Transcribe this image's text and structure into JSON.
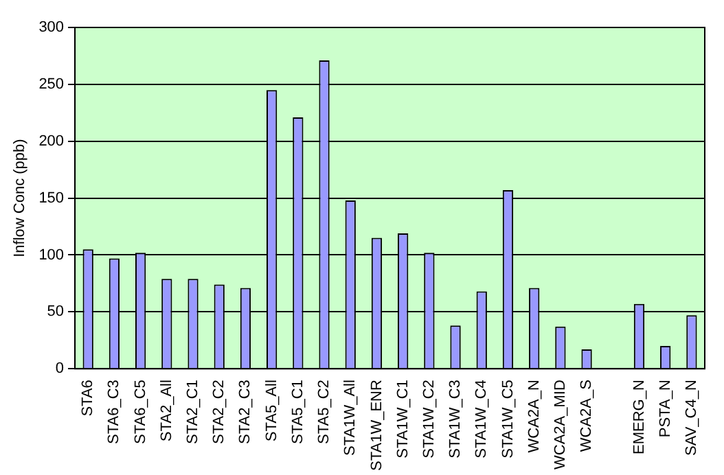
{
  "chart_data": {
    "type": "bar",
    "ylabel": "Inflow Conc (ppb)",
    "categories": [
      "STA6",
      "STA6_C3",
      "STA6_C5",
      "STA2_All",
      "STA2_C1",
      "STA2_C2",
      "STA2_C3",
      "STA5_All",
      "STA5_C1",
      "STA5_C2",
      "STA1W_All",
      "STA1W_ENR",
      "STA1W_C1",
      "STA1W_C2",
      "STA1W_C3",
      "STA1W_C4",
      "STA1W_C5",
      "WCA2A_N",
      "WCA2A_MID",
      "WCA2A_S",
      null,
      "EMERG_N",
      "PSTA_N",
      "SAV_C4_N"
    ],
    "values": [
      105,
      97,
      102,
      79,
      79,
      74,
      71,
      245,
      221,
      271,
      148,
      115,
      119,
      102,
      38,
      68,
      157,
      71,
      37,
      17,
      null,
      57,
      20,
      47
    ],
    "color": "#9999ff",
    "ylim": [
      0,
      300
    ],
    "yticks": [
      0,
      50,
      100,
      150,
      200,
      250,
      300
    ],
    "grid": "y"
  }
}
